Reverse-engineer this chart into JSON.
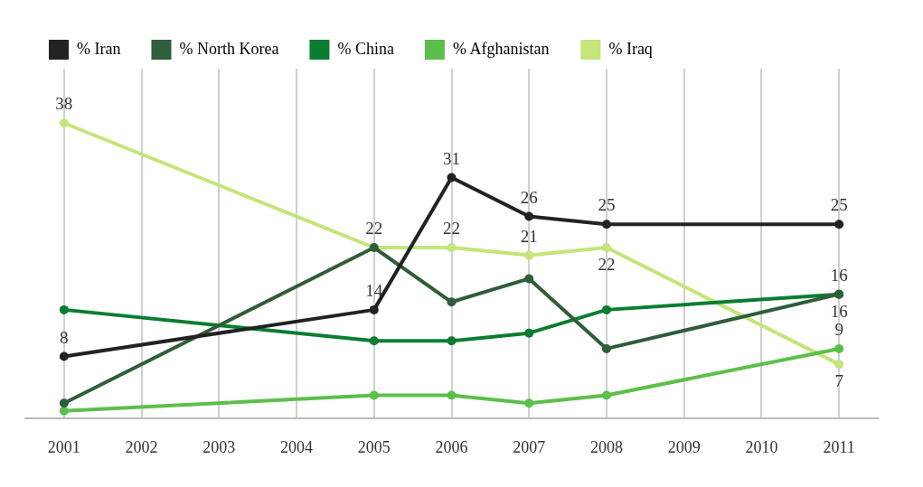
{
  "chart_data": {
    "type": "line",
    "categories": [
      "2001",
      "2002",
      "2003",
      "2004",
      "2005",
      "2006",
      "2007",
      "2008",
      "2009",
      "2010",
      "2011"
    ],
    "series": [
      {
        "name": "% Iran",
        "color": "#222222",
        "values": [
          8,
          null,
          null,
          null,
          14,
          31,
          26,
          25,
          null,
          null,
          25
        ],
        "value_labels": [
          "8",
          null,
          null,
          null,
          "14",
          "31",
          "26",
          "25",
          null,
          null,
          "25"
        ]
      },
      {
        "name": "% North Korea",
        "color": "#2e5e3a",
        "values": [
          2,
          null,
          null,
          null,
          22,
          15,
          18,
          9,
          null,
          null,
          16
        ],
        "value_labels": [
          null,
          null,
          null,
          null,
          null,
          null,
          null,
          null,
          null,
          null,
          "16"
        ]
      },
      {
        "name": "% China",
        "color": "#0a7d30",
        "values": [
          14,
          null,
          null,
          null,
          10,
          10,
          11,
          14,
          null,
          null,
          16
        ],
        "value_labels": [
          null,
          null,
          null,
          null,
          null,
          null,
          null,
          null,
          null,
          null,
          "16"
        ]
      },
      {
        "name": "% Afghanistan",
        "color": "#5cbf4a",
        "values": [
          1,
          null,
          null,
          null,
          3,
          3,
          2,
          3,
          null,
          null,
          9
        ],
        "value_labels": [
          null,
          null,
          null,
          null,
          null,
          null,
          null,
          null,
          null,
          null,
          "9"
        ]
      },
      {
        "name": "% Iraq",
        "color": "#c4e57a",
        "values": [
          38,
          null,
          null,
          null,
          22,
          22,
          21,
          22,
          null,
          null,
          7
        ],
        "value_labels": [
          "38",
          null,
          null,
          null,
          "22",
          "22",
          "21",
          "22",
          null,
          null,
          "7"
        ]
      }
    ],
    "grid": "x",
    "legend": "top left",
    "marker": "circle",
    "line_style": "solid"
  }
}
